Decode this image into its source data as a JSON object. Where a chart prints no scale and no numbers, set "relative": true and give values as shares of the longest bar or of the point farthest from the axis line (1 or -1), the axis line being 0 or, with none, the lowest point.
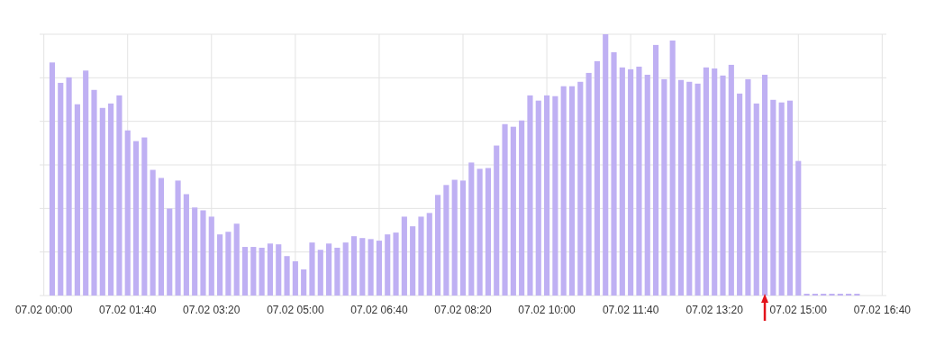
{
  "chart_data": {
    "type": "bar",
    "relative": true,
    "grid": true,
    "color": "#bfb0f3",
    "categories": [
      "07.02 00:00",
      null,
      null,
      null,
      null,
      null,
      null,
      null,
      null,
      null,
      "07.02 01:40",
      null,
      null,
      null,
      null,
      null,
      null,
      null,
      null,
      null,
      "07.02 03:20",
      null,
      null,
      null,
      null,
      null,
      null,
      null,
      null,
      null,
      "07.02 05:00",
      null,
      null,
      null,
      null,
      null,
      null,
      null,
      null,
      null,
      "07.02 06:40",
      null,
      null,
      null,
      null,
      null,
      null,
      null,
      null,
      null,
      "07.02 08:20",
      null,
      null,
      null,
      null,
      null,
      null,
      null,
      null,
      null,
      "07.02 10:00",
      null,
      null,
      null,
      null,
      null,
      null,
      null,
      null,
      null,
      "07.02 11:40",
      null,
      null,
      null,
      null,
      null,
      null,
      null,
      null,
      null,
      "07.02 13:20",
      null,
      null,
      null,
      null,
      null,
      null,
      null,
      null,
      null,
      "07.02 15:00",
      null,
      null,
      null,
      null,
      null,
      null,
      null,
      null,
      null,
      "07.02 16:40"
    ],
    "values": [
      null,
      0.892,
      0.814,
      0.835,
      0.732,
      0.861,
      0.787,
      0.718,
      0.735,
      0.766,
      0.632,
      0.591,
      0.605,
      0.481,
      0.45,
      0.333,
      0.44,
      0.388,
      0.337,
      0.326,
      0.302,
      0.234,
      0.244,
      0.275,
      0.186,
      0.186,
      0.183,
      0.199,
      0.196,
      0.151,
      0.131,
      0.1,
      0.203,
      0.175,
      0.199,
      0.183,
      0.203,
      0.227,
      0.22,
      0.216,
      0.21,
      0.234,
      0.241,
      0.302,
      0.265,
      0.302,
      0.316,
      0.385,
      0.423,
      0.443,
      0.44,
      0.509,
      0.485,
      0.488,
      0.574,
      0.656,
      0.646,
      0.67,
      0.766,
      0.746,
      0.766,
      0.763,
      0.801,
      0.801,
      0.818,
      0.852,
      0.897,
      1,
      0.931,
      0.873,
      0.866,
      0.876,
      0.845,
      0.959,
      0.828,
      0.976,
      0.825,
      0.818,
      0.811,
      0.873,
      0.869,
      0.842,
      0.883,
      0.773,
      0.828,
      0.735,
      0.845,
      0.749,
      0.739,
      0.746,
      0.515,
      0.007,
      0.007,
      0.007,
      0.007,
      0.007,
      0.007,
      0.007,
      null,
      null,
      null
    ]
  }
}
